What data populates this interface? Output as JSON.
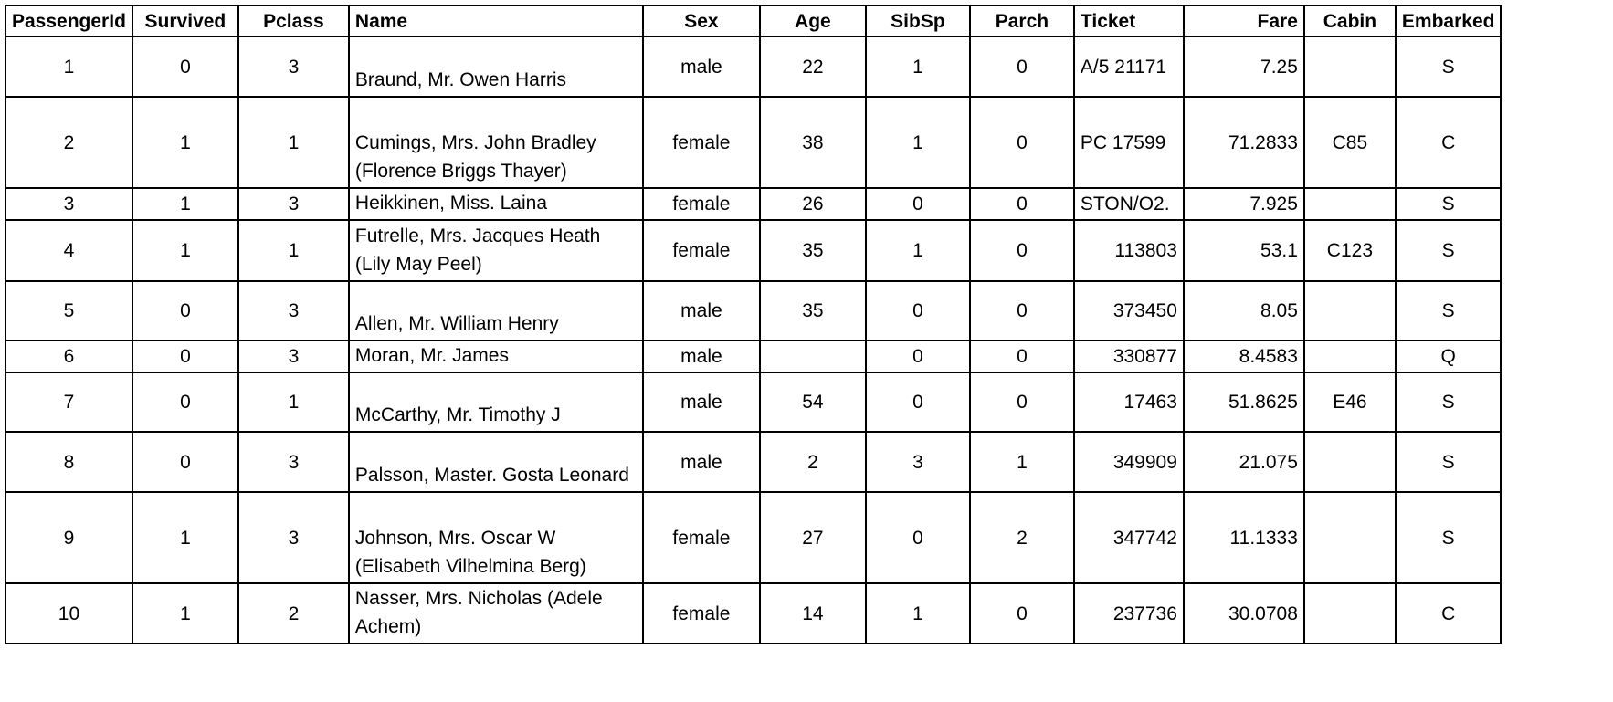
{
  "columns": [
    {
      "key": "PassengerId",
      "label": "PassengerId",
      "align": "c"
    },
    {
      "key": "Survived",
      "label": "Survived",
      "align": "c"
    },
    {
      "key": "Pclass",
      "label": "Pclass",
      "align": "c"
    },
    {
      "key": "Name",
      "label": "Name",
      "align": "l"
    },
    {
      "key": "Sex",
      "label": "Sex",
      "align": "c"
    },
    {
      "key": "Age",
      "label": "Age",
      "align": "c"
    },
    {
      "key": "SibSp",
      "label": "SibSp",
      "align": "c"
    },
    {
      "key": "Parch",
      "label": "Parch",
      "align": "c"
    },
    {
      "key": "Ticket",
      "label": "Ticket",
      "align": "l"
    },
    {
      "key": "Fare",
      "label": "Fare",
      "align": "r"
    },
    {
      "key": "Cabin",
      "label": "Cabin",
      "align": "c"
    },
    {
      "key": "Embarked",
      "label": "Embarked",
      "align": "c"
    }
  ],
  "rows": [
    {
      "PassengerId": "1",
      "Survived": "0",
      "Pclass": "3",
      "Name": "Braund, Mr. Owen Harris",
      "Sex": "male",
      "Age": "22",
      "SibSp": "1",
      "Parch": "0",
      "Ticket": "A/5 21171",
      "Fare": "7.25",
      "Cabin": "",
      "Embarked": "S"
    },
    {
      "PassengerId": "2",
      "Survived": "1",
      "Pclass": "1",
      "Name": "Cumings, Mrs. John Bradley (Florence Briggs Thayer)",
      "Sex": "female",
      "Age": "38",
      "SibSp": "1",
      "Parch": "0",
      "Ticket": "PC 17599",
      "Fare": "71.2833",
      "Cabin": "C85",
      "Embarked": "C"
    },
    {
      "PassengerId": "3",
      "Survived": "1",
      "Pclass": "3",
      "Name": "Heikkinen, Miss. Laina",
      "Sex": "female",
      "Age": "26",
      "SibSp": "0",
      "Parch": "0",
      "Ticket": "STON/O2.",
      "Fare": "7.925",
      "Cabin": "",
      "Embarked": "S"
    },
    {
      "PassengerId": "4",
      "Survived": "1",
      "Pclass": "1",
      "Name": "Futrelle, Mrs. Jacques Heath (Lily May Peel)",
      "Sex": "female",
      "Age": "35",
      "SibSp": "1",
      "Parch": "0",
      "Ticket": "113803",
      "Fare": "53.1",
      "Cabin": "C123",
      "Embarked": "S"
    },
    {
      "PassengerId": "5",
      "Survived": "0",
      "Pclass": "3",
      "Name": "Allen, Mr. William Henry",
      "Sex": "male",
      "Age": "35",
      "SibSp": "0",
      "Parch": "0",
      "Ticket": "373450",
      "Fare": "8.05",
      "Cabin": "",
      "Embarked": "S"
    },
    {
      "PassengerId": "6",
      "Survived": "0",
      "Pclass": "3",
      "Name": "Moran, Mr. James",
      "Sex": "male",
      "Age": "",
      "SibSp": "0",
      "Parch": "0",
      "Ticket": "330877",
      "Fare": "8.4583",
      "Cabin": "",
      "Embarked": "Q"
    },
    {
      "PassengerId": "7",
      "Survived": "0",
      "Pclass": "1",
      "Name": "McCarthy, Mr. Timothy J",
      "Sex": "male",
      "Age": "54",
      "SibSp": "0",
      "Parch": "0",
      "Ticket": "17463",
      "Fare": "51.8625",
      "Cabin": "E46",
      "Embarked": "S"
    },
    {
      "PassengerId": "8",
      "Survived": "0",
      "Pclass": "3",
      "Name": "Palsson, Master. Gosta Leonard",
      "Sex": "male",
      "Age": "2",
      "SibSp": "3",
      "Parch": "1",
      "Ticket": "349909",
      "Fare": "21.075",
      "Cabin": "",
      "Embarked": "S"
    },
    {
      "PassengerId": "9",
      "Survived": "1",
      "Pclass": "3",
      "Name": "Johnson, Mrs. Oscar W (Elisabeth Vilhelmina Berg)",
      "Sex": "female",
      "Age": "27",
      "SibSp": "0",
      "Parch": "2",
      "Ticket": "347742",
      "Fare": "11.1333",
      "Cabin": "",
      "Embarked": "S"
    },
    {
      "PassengerId": "10",
      "Survived": "1",
      "Pclass": "2",
      "Name": "Nasser, Mrs. Nicholas (Adele Achem)",
      "Sex": "female",
      "Age": "14",
      "SibSp": "1",
      "Parch": "0",
      "Ticket": "237736",
      "Fare": "30.0708",
      "Cabin": "",
      "Embarked": "C"
    }
  ]
}
